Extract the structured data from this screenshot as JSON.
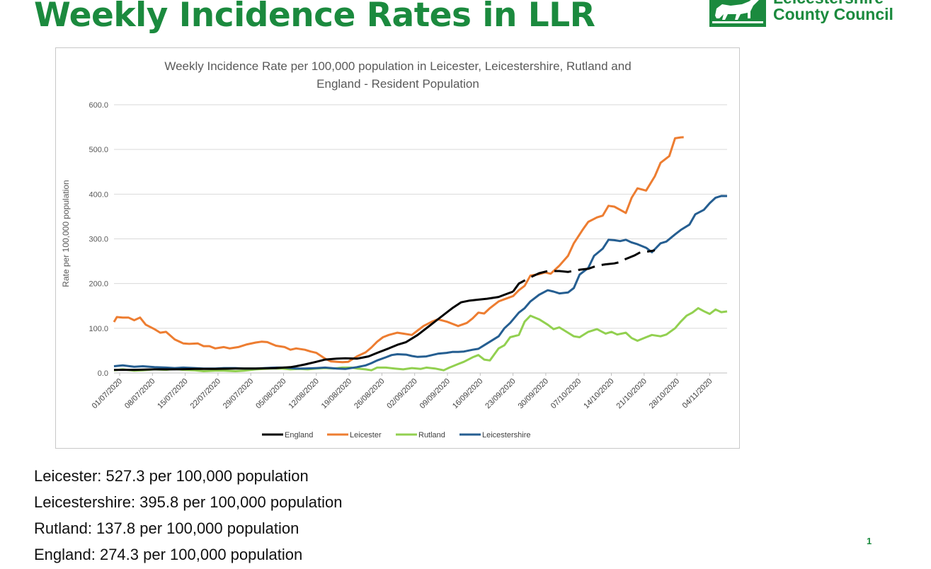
{
  "slide": {
    "title": "Weekly Incidence Rates in LLR",
    "page_number": "1"
  },
  "logo": {
    "line1": "Leicestershire",
    "line2": "County Council"
  },
  "stats": [
    "Leicester: 527.3 per 100,000 population",
    "Leicestershire: 395.8 per 100,000 population",
    "Rutland: 137.8 per 100,000 population",
    "England: 274.3 per 100,000 population"
  ],
  "colors": {
    "brand_green": "#1b8a3e",
    "england": "#000000",
    "leicester": "#ed7d31",
    "rutland": "#92d050",
    "leicestershire": "#255e91"
  },
  "chart_data": {
    "type": "line",
    "title_lines": [
      "Weekly Incidence Rate per 100,000 population in Leicester, Leicestershire, Rutland and",
      "England - Resident Population"
    ],
    "xlabel": "",
    "ylabel": "Rate per 100,000 population",
    "ylim": [
      0,
      600
    ],
    "yticks": [
      "0.0",
      "100.0",
      "200.0",
      "300.0",
      "400.0",
      "500.0",
      "600.0"
    ],
    "grid": true,
    "legend_position": "bottom",
    "x_start": "01/07/2020",
    "n_days": 134,
    "x_tick_labels": [
      "01/07/2020",
      "08/07/2020",
      "15/07/2020",
      "22/07/2020",
      "29/07/2020",
      "05/08/2020",
      "12/08/2020",
      "19/08/2020",
      "26/08/2020",
      "02/09/2020",
      "09/09/2020",
      "16/09/2020",
      "23/09/2020",
      "30/09/2020",
      "07/10/2020",
      "14/10/2020",
      "21/10/2020",
      "28/10/2020",
      "04/11/2020"
    ],
    "series": [
      {
        "name": "England",
        "color": "#000000",
        "dashed_segments": true,
        "points": [
          [
            0,
            7
          ],
          [
            7,
            7
          ],
          [
            14,
            8
          ],
          [
            21,
            8
          ],
          [
            28,
            9
          ],
          [
            35,
            9
          ],
          [
            42,
            10
          ],
          [
            49,
            10
          ],
          [
            56,
            11
          ],
          [
            61,
            13
          ],
          [
            63,
            15
          ],
          [
            66,
            19
          ],
          [
            70,
            25
          ],
          [
            73,
            30
          ],
          [
            77,
            32
          ],
          [
            80,
            33
          ],
          [
            84,
            32
          ],
          [
            88,
            37
          ],
          [
            91,
            45
          ],
          [
            95,
            55
          ],
          [
            98,
            63
          ],
          [
            101,
            69
          ],
          [
            105,
            85
          ],
          [
            109,
            105
          ],
          [
            113,
            125
          ],
          [
            117,
            145
          ],
          [
            120,
            158
          ],
          [
            123,
            162
          ],
          [
            126,
            164
          ],
          [
            129,
            166
          ],
          [
            133,
            170
          ],
          [
            135,
            175
          ],
          [
            138,
            182
          ],
          [
            140,
            200
          ],
          [
            144,
            214
          ],
          [
            147,
            223
          ],
          [
            150,
            228
          ],
          [
            154,
            228
          ],
          [
            157,
            226
          ],
          [
            161,
            231
          ],
          [
            164,
            233
          ],
          [
            167,
            240
          ],
          [
            170,
            243
          ],
          [
            173,
            245
          ],
          [
            175,
            248
          ],
          [
            177,
            255
          ],
          [
            180,
            263
          ],
          [
            182,
            270
          ],
          [
            185,
            272
          ],
          [
            187,
            274.3
          ]
        ]
      },
      {
        "name": "Leicester",
        "color": "#ed7d31",
        "points": [
          [
            0,
            114
          ],
          [
            1,
            125
          ],
          [
            3,
            124
          ],
          [
            5,
            124
          ],
          [
            7,
            118
          ],
          [
            9,
            124
          ],
          [
            11,
            108
          ],
          [
            14,
            98
          ],
          [
            16,
            90
          ],
          [
            18,
            92
          ],
          [
            21,
            75
          ],
          [
            24,
            66
          ],
          [
            26,
            65
          ],
          [
            29,
            66
          ],
          [
            31,
            60
          ],
          [
            33,
            60
          ],
          [
            35,
            55
          ],
          [
            38,
            58
          ],
          [
            40,
            55
          ],
          [
            43,
            58
          ],
          [
            46,
            64
          ],
          [
            49,
            68
          ],
          [
            51,
            70
          ],
          [
            53,
            69
          ],
          [
            56,
            61
          ],
          [
            59,
            58
          ],
          [
            61,
            52
          ],
          [
            63,
            55
          ],
          [
            66,
            52
          ],
          [
            68,
            48
          ],
          [
            70,
            45
          ],
          [
            73,
            32
          ],
          [
            75,
            26
          ],
          [
            77,
            25
          ],
          [
            79,
            24
          ],
          [
            81,
            25
          ],
          [
            84,
            37
          ],
          [
            87,
            46
          ],
          [
            89,
            57
          ],
          [
            91,
            70
          ],
          [
            93,
            80
          ],
          [
            95,
            85
          ],
          [
            98,
            90
          ],
          [
            100,
            88
          ],
          [
            103,
            85
          ],
          [
            105,
            95
          ],
          [
            107,
            105
          ],
          [
            110,
            115
          ],
          [
            112,
            120
          ],
          [
            115,
            115
          ],
          [
            117,
            110
          ],
          [
            119,
            105
          ],
          [
            122,
            112
          ],
          [
            124,
            122
          ],
          [
            126,
            135
          ],
          [
            128,
            133
          ],
          [
            130,
            145
          ],
          [
            133,
            160
          ],
          [
            135,
            165
          ],
          [
            138,
            172
          ],
          [
            140,
            185
          ],
          [
            142,
            195
          ],
          [
            144,
            218
          ],
          [
            147,
            221
          ],
          [
            149,
            225
          ],
          [
            151,
            222
          ],
          [
            154,
            240
          ],
          [
            157,
            262
          ],
          [
            159,
            290
          ],
          [
            162,
            320
          ],
          [
            164,
            338
          ],
          [
            167,
            348
          ],
          [
            169,
            352
          ],
          [
            171,
            374
          ],
          [
            173,
            372
          ],
          [
            175,
            365
          ],
          [
            177,
            358
          ],
          [
            179,
            392
          ],
          [
            181,
            413
          ],
          [
            184,
            408
          ],
          [
            187,
            440
          ],
          [
            189,
            470
          ],
          [
            192,
            485
          ],
          [
            194,
            525
          ],
          [
            196,
            527
          ],
          [
            197,
            527.3
          ]
        ]
      },
      {
        "name": "Rutland",
        "color": "#92d050",
        "points": [
          [
            0,
            6
          ],
          [
            3,
            8
          ],
          [
            7,
            5
          ],
          [
            10,
            6
          ],
          [
            14,
            8
          ],
          [
            18,
            7
          ],
          [
            21,
            9
          ],
          [
            24,
            7
          ],
          [
            28,
            6
          ],
          [
            31,
            4
          ],
          [
            35,
            5
          ],
          [
            38,
            5
          ],
          [
            42,
            4
          ],
          [
            45,
            5
          ],
          [
            49,
            8
          ],
          [
            52,
            9
          ],
          [
            55,
            10
          ],
          [
            58,
            10
          ],
          [
            61,
            8
          ],
          [
            64,
            9
          ],
          [
            67,
            8
          ],
          [
            70,
            10
          ],
          [
            73,
            11
          ],
          [
            76,
            10
          ],
          [
            79,
            12
          ],
          [
            82,
            12
          ],
          [
            84,
            10
          ],
          [
            87,
            8
          ],
          [
            89,
            6
          ],
          [
            91,
            12
          ],
          [
            94,
            12
          ],
          [
            97,
            10
          ],
          [
            100,
            8
          ],
          [
            103,
            11
          ],
          [
            106,
            9
          ],
          [
            108,
            12
          ],
          [
            111,
            10
          ],
          [
            114,
            6
          ],
          [
            116,
            12
          ],
          [
            119,
            20
          ],
          [
            121,
            25
          ],
          [
            124,
            35
          ],
          [
            126,
            40
          ],
          [
            128,
            30
          ],
          [
            130,
            28
          ],
          [
            133,
            55
          ],
          [
            135,
            62
          ],
          [
            137,
            80
          ],
          [
            140,
            85
          ],
          [
            142,
            115
          ],
          [
            144,
            128
          ],
          [
            147,
            120
          ],
          [
            150,
            108
          ],
          [
            152,
            98
          ],
          [
            154,
            102
          ],
          [
            157,
            90
          ],
          [
            159,
            82
          ],
          [
            161,
            80
          ],
          [
            164,
            92
          ],
          [
            167,
            98
          ],
          [
            170,
            88
          ],
          [
            172,
            92
          ],
          [
            174,
            86
          ],
          [
            177,
            90
          ],
          [
            179,
            78
          ],
          [
            181,
            72
          ],
          [
            184,
            80
          ],
          [
            186,
            85
          ],
          [
            189,
            82
          ],
          [
            191,
            86
          ],
          [
            194,
            100
          ],
          [
            196,
            115
          ],
          [
            198,
            128
          ],
          [
            200,
            135
          ],
          [
            202,
            145
          ],
          [
            204,
            138
          ],
          [
            206,
            132
          ],
          [
            208,
            142
          ],
          [
            210,
            136
          ],
          [
            212,
            137.8
          ]
        ]
      },
      {
        "name": "Leicestershire",
        "color": "#255e91",
        "points": [
          [
            0,
            15
          ],
          [
            3,
            17
          ],
          [
            7,
            14
          ],
          [
            10,
            15
          ],
          [
            14,
            13
          ],
          [
            18,
            12
          ],
          [
            21,
            11
          ],
          [
            24,
            12
          ],
          [
            28,
            11
          ],
          [
            31,
            10
          ],
          [
            35,
            10
          ],
          [
            38,
            11
          ],
          [
            42,
            11
          ],
          [
            45,
            10
          ],
          [
            49,
            10
          ],
          [
            52,
            11
          ],
          [
            56,
            12
          ],
          [
            59,
            12
          ],
          [
            63,
            10
          ],
          [
            66,
            10
          ],
          [
            70,
            11
          ],
          [
            73,
            12
          ],
          [
            77,
            10
          ],
          [
            80,
            9
          ],
          [
            84,
            13
          ],
          [
            87,
            17
          ],
          [
            89,
            22
          ],
          [
            91,
            28
          ],
          [
            94,
            35
          ],
          [
            96,
            40
          ],
          [
            98,
            42
          ],
          [
            101,
            41
          ],
          [
            103,
            38
          ],
          [
            105,
            36
          ],
          [
            108,
            37
          ],
          [
            110,
            40
          ],
          [
            112,
            43
          ],
          [
            115,
            45
          ],
          [
            117,
            47
          ],
          [
            119,
            47
          ],
          [
            121,
            48
          ],
          [
            124,
            52
          ],
          [
            126,
            54
          ],
          [
            128,
            62
          ],
          [
            130,
            70
          ],
          [
            133,
            82
          ],
          [
            135,
            100
          ],
          [
            137,
            112
          ],
          [
            140,
            135
          ],
          [
            142,
            145
          ],
          [
            144,
            160
          ],
          [
            147,
            175
          ],
          [
            150,
            185
          ],
          [
            152,
            182
          ],
          [
            154,
            178
          ],
          [
            157,
            180
          ],
          [
            159,
            190
          ],
          [
            161,
            220
          ],
          [
            164,
            235
          ],
          [
            166,
            262
          ],
          [
            169,
            278
          ],
          [
            171,
            298
          ],
          [
            173,
            297
          ],
          [
            175,
            295
          ],
          [
            177,
            298
          ],
          [
            179,
            292
          ],
          [
            181,
            288
          ],
          [
            184,
            280
          ],
          [
            186,
            270
          ],
          [
            189,
            290
          ],
          [
            191,
            294
          ],
          [
            194,
            310
          ],
          [
            196,
            320
          ],
          [
            199,
            332
          ],
          [
            201,
            355
          ],
          [
            204,
            365
          ],
          [
            206,
            380
          ],
          [
            208,
            392
          ],
          [
            210,
            396
          ],
          [
            212,
            395.8
          ]
        ]
      }
    ]
  }
}
